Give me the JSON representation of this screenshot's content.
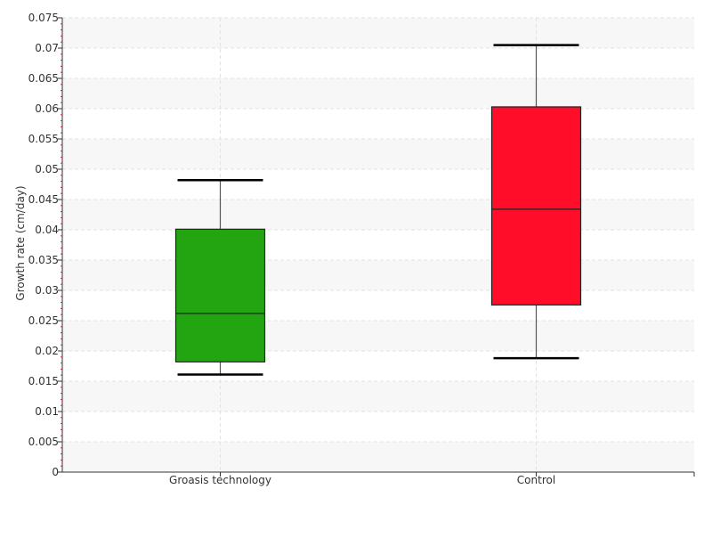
{
  "chart_data": {
    "type": "box",
    "title": "",
    "xlabel": "",
    "ylabel": "Growth rate (cm/day)",
    "ylim": [
      0,
      0.075
    ],
    "y_ticks": [
      0,
      0.005,
      0.01,
      0.015,
      0.02,
      0.025,
      0.03,
      0.035,
      0.04,
      0.045,
      0.05,
      0.055,
      0.06,
      0.065,
      0.07,
      0.075
    ],
    "y_tick_labels": [
      "0",
      "0.005",
      "0.01",
      "0.015",
      "0.02",
      "0.025",
      "0.03",
      "0.035",
      "0.04",
      "0.045",
      "0.05",
      "0.055",
      "0.06",
      "0.065",
      "0.07",
      "0.075"
    ],
    "grid": true,
    "categories": [
      "Groasis technology",
      "Control"
    ],
    "boxes": [
      {
        "category": "Groasis technology",
        "min": 0.0161,
        "q1": 0.0182,
        "median": 0.0262,
        "q3": 0.0401,
        "max": 0.0482,
        "color": "#22a510"
      },
      {
        "category": "Control",
        "min": 0.0188,
        "q1": 0.0276,
        "median": 0.0434,
        "q3": 0.0603,
        "max": 0.0705,
        "color": "#ff0d29"
      }
    ]
  }
}
